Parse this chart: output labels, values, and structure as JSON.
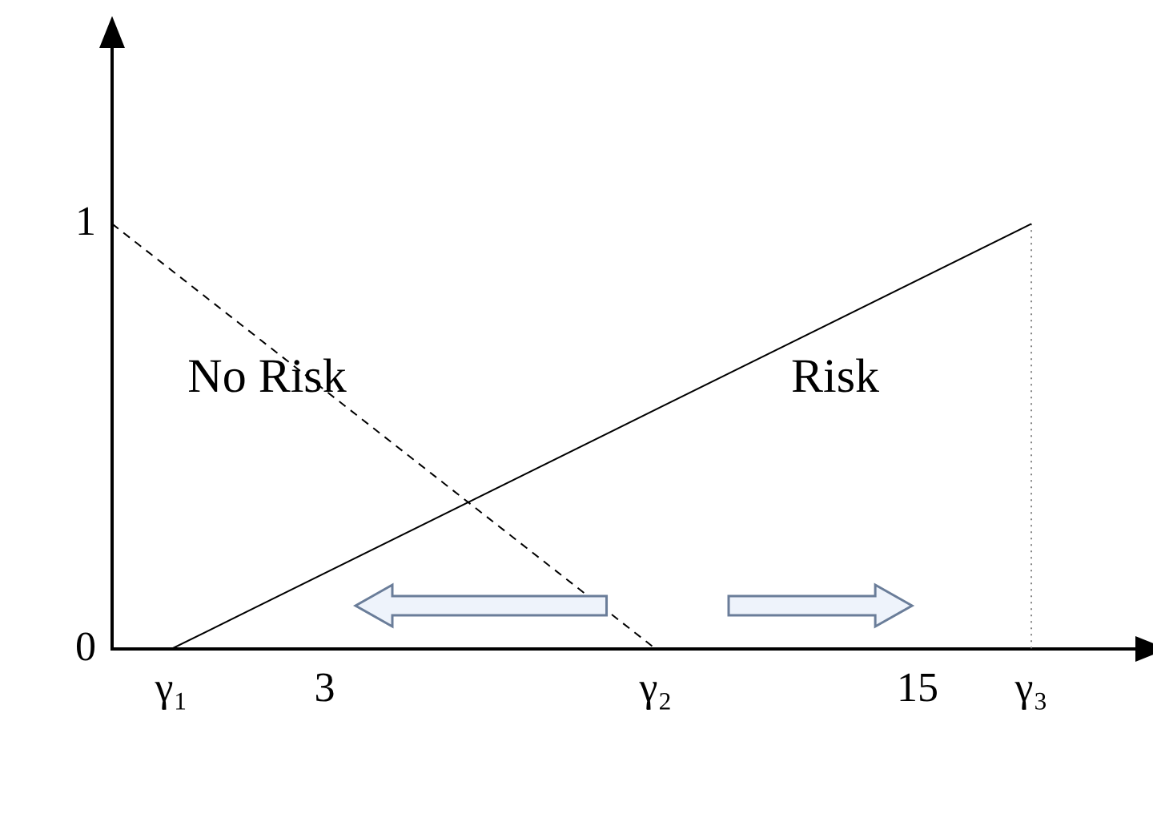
{
  "chart_data": {
    "type": "line",
    "xlim": [
      -1.3,
      19.6
    ],
    "ylim": [
      0,
      1.43
    ],
    "xticks": [
      {
        "value": -0.1,
        "label": "γ₁"
      },
      3,
      {
        "value": 9.7,
        "label": "γ₂"
      },
      15,
      {
        "value": 17.3,
        "label": "γ₃"
      }
    ],
    "yticks": [
      0,
      1
    ],
    "series": [
      {
        "color": "#000000",
        "x": [
          -1.3,
          9.7
        ],
        "values": [
          1,
          0
        ],
        "line_style": "dashed"
      },
      {
        "color": "#000000",
        "x": [
          -0.1,
          17.3
        ],
        "values": [
          0,
          1
        ],
        "line_style": "solid"
      },
      {
        "color": "#808080",
        "x": [
          17.3,
          17.3
        ],
        "values": [
          1,
          0
        ],
        "line_style": "dotted"
      }
    ],
    "marker": "none",
    "grid": false,
    "legend": false,
    "annotations": [
      "No Risk",
      "Risk"
    ]
  }
}
